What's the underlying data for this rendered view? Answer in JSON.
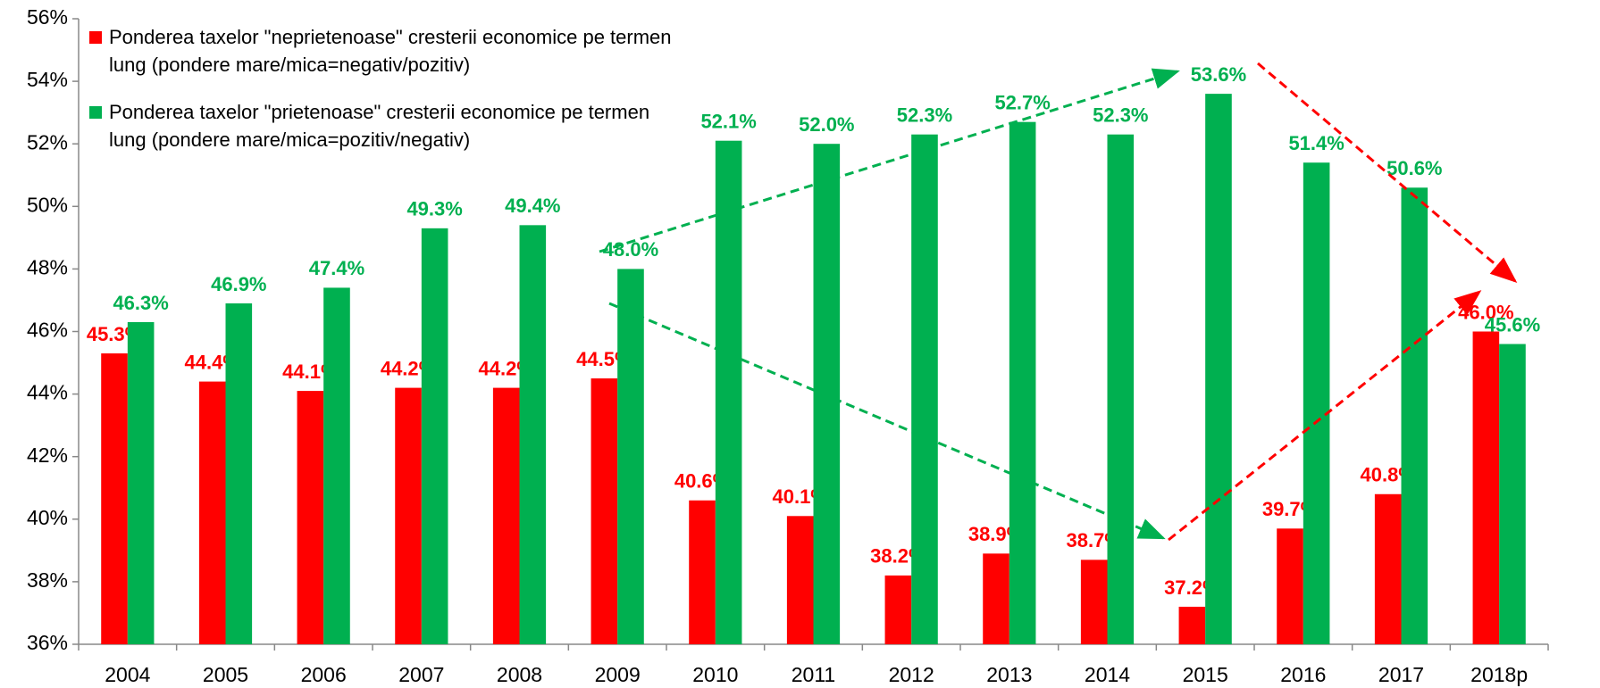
{
  "chart_data": {
    "type": "bar",
    "categories": [
      "2004",
      "2005",
      "2006",
      "2007",
      "2008",
      "2009",
      "2010",
      "2011",
      "2012",
      "2013",
      "2014",
      "2015",
      "2016",
      "2017",
      "2018p"
    ],
    "series": [
      {
        "name": "Ponderea taxelor \"neprietenoase\" cresterii economice pe termen lung (pondere mare/mica=negativ/pozitiv)",
        "color": "#ff0000",
        "values": [
          45.3,
          44.4,
          44.1,
          44.2,
          44.2,
          44.5,
          40.6,
          40.1,
          38.2,
          38.9,
          38.7,
          37.2,
          39.7,
          40.8,
          46.0
        ],
        "value_labels": [
          "45.3%",
          "44.4%",
          "44.1%",
          "44.2%",
          "44.2%",
          "44.5%",
          "40.6%",
          "40.1%",
          "38.2%",
          "38.9%",
          "38.7%",
          "37.2%",
          "39.7%",
          "40.8%",
          "46.0%"
        ]
      },
      {
        "name": "Ponderea taxelor \"prietenoase\" cresterii economice pe termen lung (pondere mare/mica=pozitiv/negativ)",
        "color": "#00b050",
        "values": [
          46.3,
          46.9,
          47.4,
          49.3,
          49.4,
          48.0,
          52.1,
          52.0,
          52.3,
          52.7,
          52.3,
          53.6,
          51.4,
          50.6,
          45.6
        ],
        "value_labels": [
          "46.3%",
          "46.9%",
          "47.4%",
          "49.3%",
          "49.4%",
          "48.0%",
          "52.1%",
          "52.0%",
          "52.3%",
          "52.7%",
          "52.3%",
          "53.6%",
          "51.4%",
          "50.6%",
          "45.6%"
        ]
      }
    ],
    "ylim": [
      36,
      56
    ],
    "yticks": [
      {
        "value": 36,
        "label": "36%"
      },
      {
        "value": 38,
        "label": "38%"
      },
      {
        "value": 40,
        "label": "40%"
      },
      {
        "value": 42,
        "label": "42%"
      },
      {
        "value": 44,
        "label": "44%"
      },
      {
        "value": 46,
        "label": "46%"
      },
      {
        "value": 48,
        "label": "48%"
      },
      {
        "value": 50,
        "label": "50%"
      },
      {
        "value": 52,
        "label": "52%"
      },
      {
        "value": 54,
        "label": "54%"
      },
      {
        "value": 56,
        "label": "56%"
      }
    ],
    "grid": false,
    "legend": "top-left"
  }
}
